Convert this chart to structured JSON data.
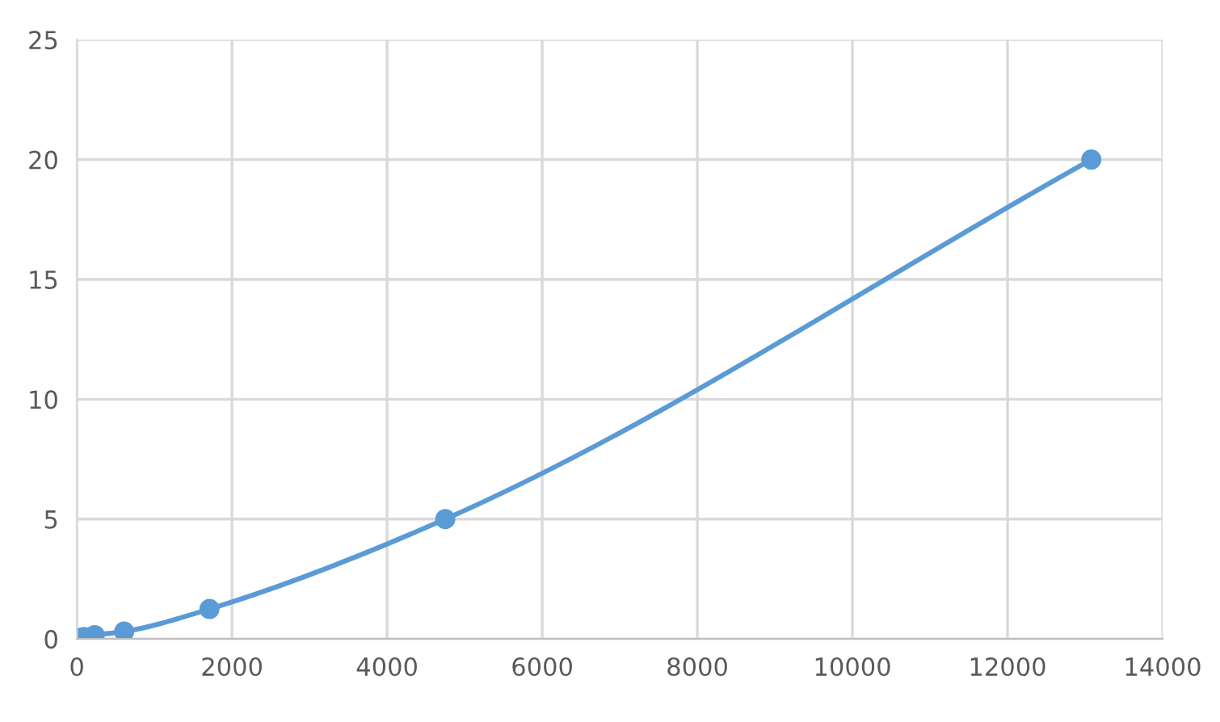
{
  "chart_data": {
    "type": "line",
    "x": [
      30,
      90,
      230,
      610,
      1710,
      4750,
      13080
    ],
    "series": [
      {
        "color": "#5b9bd5",
        "values": [
          0.04,
          0.08,
          0.16,
          0.31,
          1.25,
          5,
          20
        ]
      }
    ],
    "xlim": [
      0,
      14000
    ],
    "xticks": [
      0,
      2000,
      4000,
      6000,
      8000,
      10000,
      12000,
      14000
    ],
    "ylim": [
      0,
      25
    ],
    "yticks": [
      0,
      5,
      10,
      15,
      20,
      25
    ],
    "grid": true,
    "marker": "circle",
    "line_style": "solid"
  }
}
